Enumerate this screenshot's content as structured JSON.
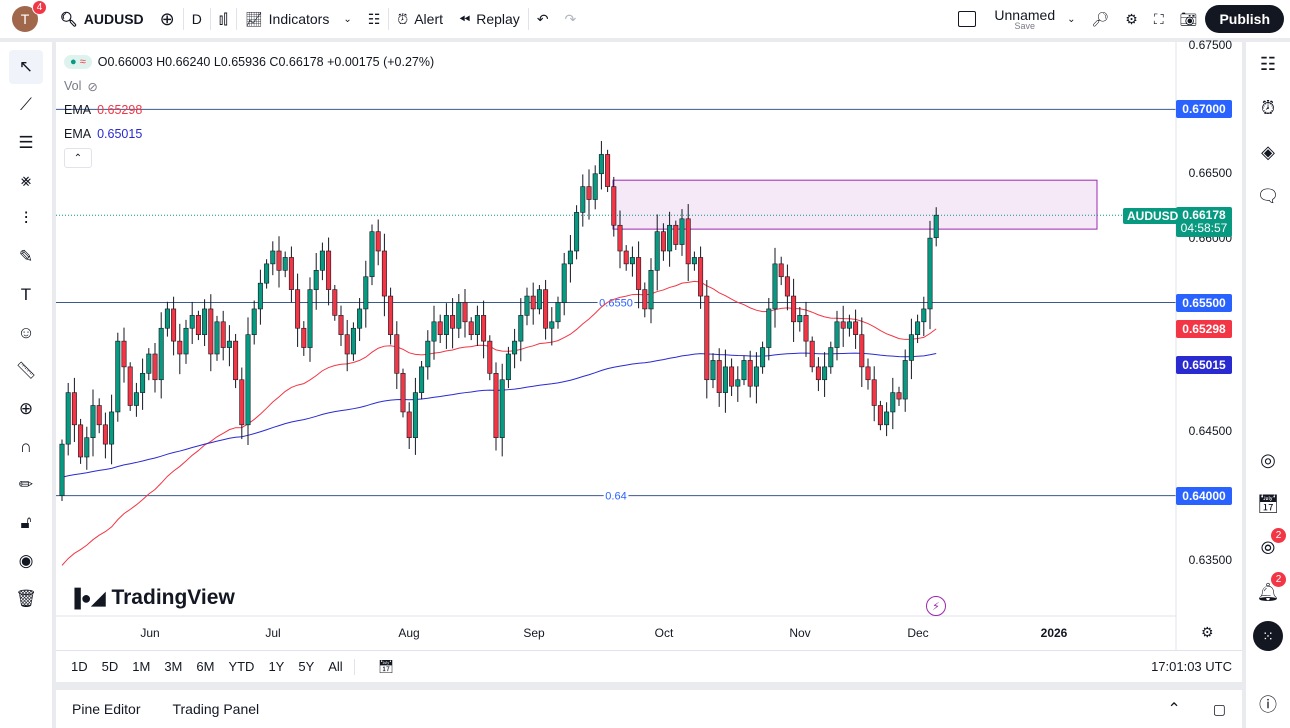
{
  "topbar": {
    "avatar_letter": "T",
    "notifications": "4",
    "symbol": "AUDUSD",
    "interval": "D",
    "indicators": "Indicators",
    "alert": "Alert",
    "replay": "Replay",
    "layout_name": "Unnamed",
    "layout_save": "Save",
    "publish": "Publish"
  },
  "legend": {
    "ohlc": "O0.66003 H0.66240 L0.65936 C0.66178 +0.00175 (+0.27%)",
    "vol": "Vol",
    "ema1_label": "EMA",
    "ema1_value": "0.65298",
    "ema2_label": "EMA",
    "ema2_value": "0.65015"
  },
  "price_axis": {
    "ticks": [
      "0.67500",
      "0.66500",
      "0.66000",
      "0.64500",
      "0.63500"
    ],
    "tick_values": [
      0.675,
      0.665,
      0.66,
      0.645,
      0.635
    ],
    "labels": {
      "h1": "0.67000",
      "h2": "0.65500",
      "h3": "0.64000",
      "ema1": "0.65298",
      "ema2": "0.65015",
      "last": "0.66178",
      "countdown": "04:58:57",
      "symbol": "AUDUSD"
    }
  },
  "hlines": [
    {
      "price": 0.67,
      "text": ""
    },
    {
      "price": 0.655,
      "text": "0.6550"
    },
    {
      "price": 0.64,
      "text": "0.64"
    }
  ],
  "zone": {
    "top": 0.6645,
    "bottom": 0.6607
  },
  "time_axis": [
    "Jun",
    "Jul",
    "Aug",
    "Sep",
    "Oct",
    "Nov",
    "Dec",
    "2026"
  ],
  "ranges": [
    "1D",
    "5D",
    "1M",
    "3M",
    "6M",
    "YTD",
    "1Y",
    "5Y",
    "All"
  ],
  "clock": "17:01:03 UTC",
  "bottom_panel": {
    "pine": "Pine Editor",
    "trading": "Trading Panel"
  },
  "logo": "TradingView",
  "right_badges": {
    "feed": "2",
    "alerts": "2"
  },
  "colors": {
    "up": "#089981",
    "down": "#f23645",
    "ema1": "#f23645",
    "ema2": "#2a2ad1",
    "hline": "#2962ff",
    "zone": "#9c27b0"
  },
  "candles": {
    "first_open": 0.64,
    "last_open": 0.66003,
    "last_high": 0.6624,
    "last_low": 0.65936,
    "closes": [
      0.644,
      0.648,
      0.6455,
      0.643,
      0.6445,
      0.647,
      0.6455,
      0.644,
      0.6465,
      0.652,
      0.65,
      0.647,
      0.648,
      0.6495,
      0.651,
      0.649,
      0.653,
      0.6545,
      0.652,
      0.651,
      0.653,
      0.654,
      0.6525,
      0.6545,
      0.651,
      0.6535,
      0.6515,
      0.652,
      0.649,
      0.6455,
      0.6525,
      0.6545,
      0.6565,
      0.658,
      0.659,
      0.6575,
      0.6585,
      0.656,
      0.653,
      0.6515,
      0.656,
      0.6575,
      0.659,
      0.656,
      0.654,
      0.6525,
      0.651,
      0.653,
      0.6545,
      0.657,
      0.6605,
      0.659,
      0.6555,
      0.6525,
      0.6495,
      0.6465,
      0.6445,
      0.648,
      0.65,
      0.652,
      0.6535,
      0.6525,
      0.654,
      0.653,
      0.655,
      0.6535,
      0.6525,
      0.654,
      0.652,
      0.6495,
      0.6445,
      0.649,
      0.651,
      0.652,
      0.654,
      0.6555,
      0.6545,
      0.656,
      0.653,
      0.6535,
      0.655,
      0.658,
      0.659,
      0.662,
      0.664,
      0.663,
      0.665,
      0.6665,
      0.664,
      0.661,
      0.659,
      0.658,
      0.6585,
      0.656,
      0.6545,
      0.6575,
      0.6605,
      0.659,
      0.661,
      0.6595,
      0.6615,
      0.658,
      0.6585,
      0.6555,
      0.649,
      0.6505,
      0.648,
      0.65,
      0.6485,
      0.649,
      0.6505,
      0.6485,
      0.65,
      0.6515,
      0.6545,
      0.658,
      0.657,
      0.6555,
      0.6535,
      0.654,
      0.652,
      0.65,
      0.649,
      0.65,
      0.6515,
      0.6535,
      0.653,
      0.6535,
      0.6525,
      0.65,
      0.649,
      0.647,
      0.6455,
      0.6465,
      0.648,
      0.6475,
      0.6505,
      0.6525,
      0.6535,
      0.6545,
      0.66,
      0.66178
    ]
  }
}
